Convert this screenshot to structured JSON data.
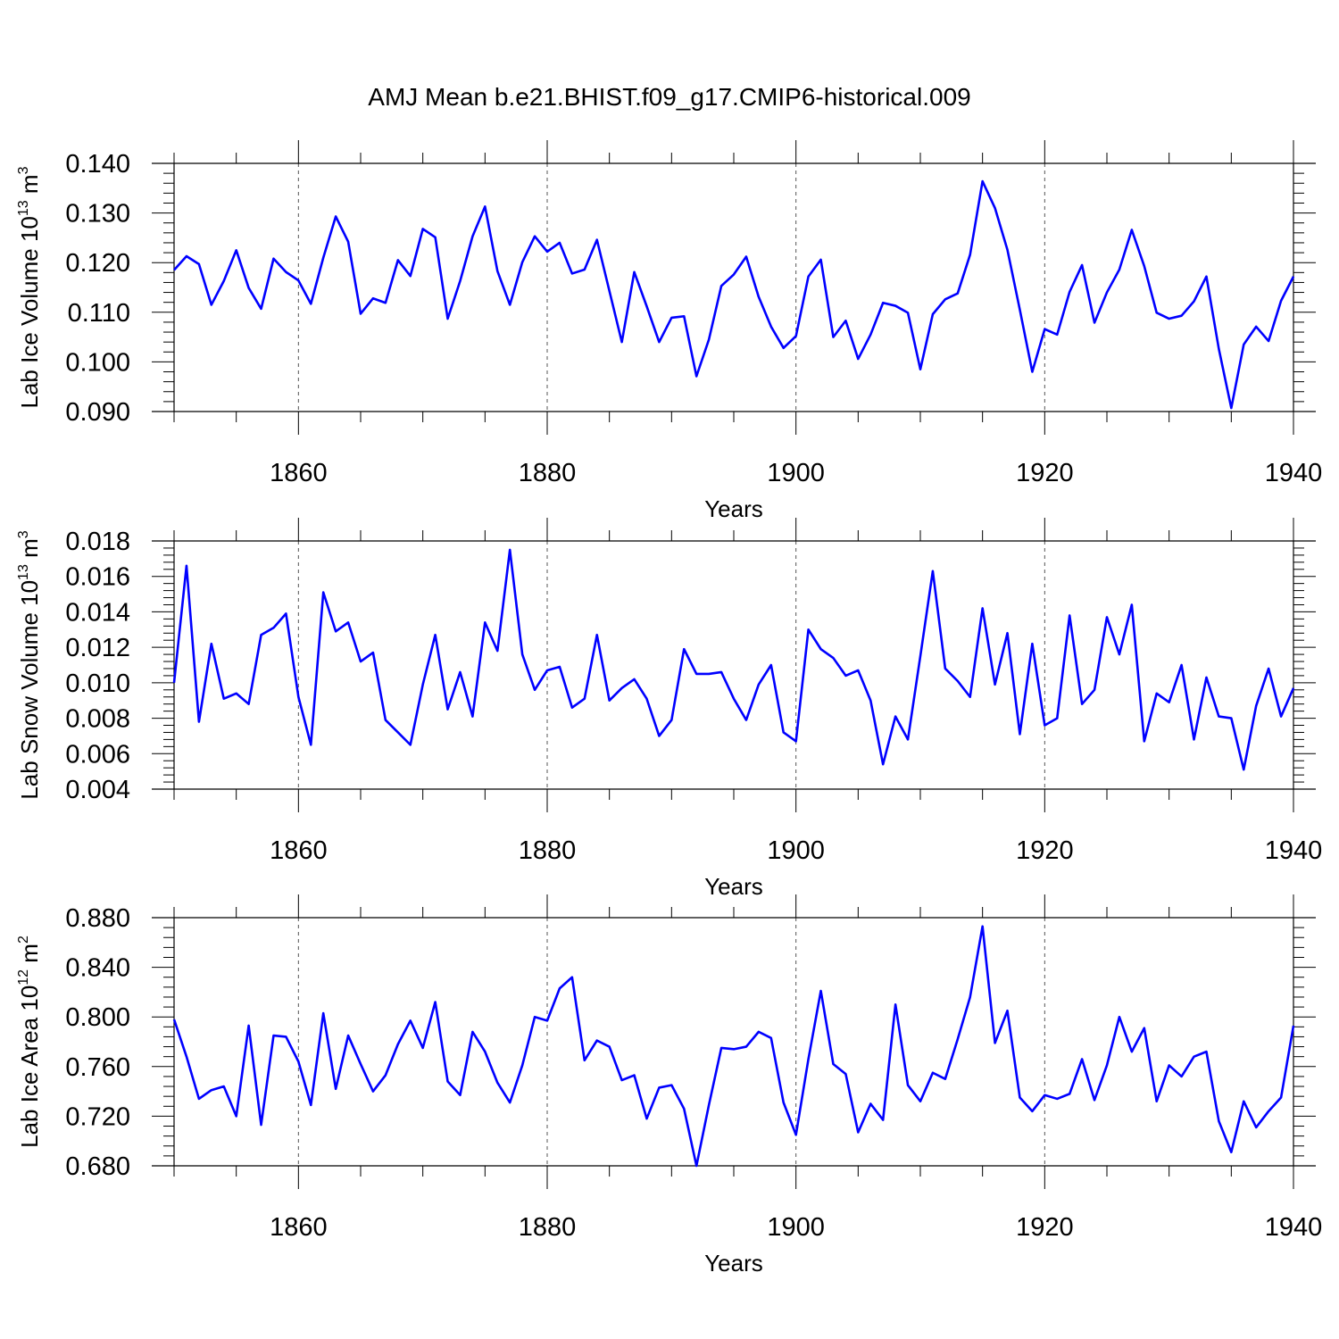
{
  "figure": {
    "title": "AMJ Mean b.e21.BHIST.f09_g17.CMIP6-historical.009",
    "line_color": "#0000ff"
  },
  "chart_data": [
    {
      "type": "line",
      "title": "",
      "xlabel": "Years",
      "ylabel": {
        "base": "Lab Ice Volume 10",
        "exp": "13",
        "unit": " m",
        "unit_exp": "3"
      },
      "xlim": [
        1850,
        1940
      ],
      "ylim": [
        0.09,
        0.14
      ],
      "x_ticks": [
        1860,
        1880,
        1900,
        1920,
        1940
      ],
      "y_ticks": [
        0.09,
        0.1,
        0.11,
        0.12,
        0.13,
        0.14
      ],
      "y_tick_labels": [
        "0.090",
        "0.100",
        "0.110",
        "0.120",
        "0.130",
        "0.140"
      ],
      "grid": "vertical dashed at major x ticks",
      "x_start": 1850,
      "values": [
        0.1185,
        0.1213,
        0.1197,
        0.1115,
        0.1163,
        0.1225,
        0.1149,
        0.1107,
        0.1208,
        0.1181,
        0.1164,
        0.1117,
        0.121,
        0.1293,
        0.1242,
        0.1097,
        0.1128,
        0.1119,
        0.1205,
        0.1173,
        0.1268,
        0.1251,
        0.1087,
        0.1163,
        0.1253,
        0.1313,
        0.1183,
        0.1115,
        0.1201,
        0.1253,
        0.1222,
        0.124,
        0.1178,
        0.1186,
        0.1246,
        0.1143,
        0.104,
        0.1181,
        0.1112,
        0.104,
        0.1089,
        0.1092,
        0.0971,
        0.1045,
        0.1153,
        0.1176,
        0.1212,
        0.1131,
        0.1071,
        0.1028,
        0.1052,
        0.1172,
        0.1206,
        0.105,
        0.1083,
        0.1006,
        0.1055,
        0.1119,
        0.1113,
        0.1099,
        0.0985,
        0.1096,
        0.1126,
        0.1138,
        0.1216,
        0.1364,
        0.131,
        0.1226,
        0.1105,
        0.098,
        0.1066,
        0.1055,
        0.1141,
        0.1195,
        0.1079,
        0.114,
        0.1186,
        0.1266,
        0.1193,
        0.1099,
        0.1087,
        0.1093,
        0.1122,
        0.1172,
        0.1026,
        0.0907,
        0.1035,
        0.1071,
        0.1042,
        0.1123,
        0.1172
      ]
    },
    {
      "type": "line",
      "title": "",
      "xlabel": "Years",
      "ylabel": {
        "base": "Lab Snow Volume 10",
        "exp": "13",
        "unit": " m",
        "unit_exp": "3"
      },
      "xlim": [
        1850,
        1940
      ],
      "ylim": [
        0.004,
        0.018
      ],
      "x_ticks": [
        1860,
        1880,
        1900,
        1920,
        1940
      ],
      "y_ticks": [
        0.004,
        0.006,
        0.008,
        0.01,
        0.012,
        0.014,
        0.016,
        0.018
      ],
      "y_tick_labels": [
        "0.004",
        "0.006",
        "0.008",
        "0.010",
        "0.012",
        "0.014",
        "0.016",
        "0.018"
      ],
      "grid": "vertical dashed at major x ticks",
      "x_start": 1850,
      "values": [
        0.01,
        0.0166,
        0.0078,
        0.0122,
        0.0091,
        0.0094,
        0.0088,
        0.0127,
        0.0131,
        0.0139,
        0.0092,
        0.0065,
        0.0151,
        0.0129,
        0.0134,
        0.0112,
        0.0117,
        0.0079,
        0.0072,
        0.0065,
        0.0099,
        0.0127,
        0.0085,
        0.0106,
        0.0081,
        0.0134,
        0.0118,
        0.0175,
        0.0116,
        0.0096,
        0.0107,
        0.0109,
        0.0086,
        0.0091,
        0.0127,
        0.009,
        0.0097,
        0.0102,
        0.0091,
        0.007,
        0.0079,
        0.0119,
        0.0105,
        0.0105,
        0.0106,
        0.0091,
        0.0079,
        0.0099,
        0.011,
        0.0072,
        0.0067,
        0.013,
        0.0119,
        0.0114,
        0.0104,
        0.0107,
        0.009,
        0.0054,
        0.0081,
        0.0068,
        0.0115,
        0.0163,
        0.0108,
        0.0101,
        0.0092,
        0.0142,
        0.0099,
        0.0128,
        0.0071,
        0.0122,
        0.0076,
        0.008,
        0.0138,
        0.0088,
        0.0096,
        0.0137,
        0.0116,
        0.0144,
        0.0067,
        0.0094,
        0.0089,
        0.011,
        0.0068,
        0.0103,
        0.0081,
        0.008,
        0.0051,
        0.0087,
        0.0108,
        0.0081,
        0.0097
      ]
    },
    {
      "type": "line",
      "title": "",
      "xlabel": "Years",
      "ylabel": {
        "base": "Lab Ice Area 10",
        "exp": "12",
        "unit": " m",
        "unit_exp": "2"
      },
      "xlim": [
        1850,
        1940
      ],
      "ylim": [
        0.68,
        0.88
      ],
      "x_ticks": [
        1860,
        1880,
        1900,
        1920,
        1940
      ],
      "y_ticks": [
        0.68,
        0.72,
        0.76,
        0.8,
        0.84,
        0.88
      ],
      "y_tick_labels": [
        "0.680",
        "0.720",
        "0.760",
        "0.800",
        "0.840",
        "0.880"
      ],
      "grid": "vertical dashed at major x ticks",
      "x_start": 1850,
      "values": [
        0.798,
        0.768,
        0.734,
        0.741,
        0.744,
        0.72,
        0.793,
        0.713,
        0.785,
        0.784,
        0.764,
        0.729,
        0.803,
        0.742,
        0.785,
        0.762,
        0.74,
        0.753,
        0.778,
        0.797,
        0.775,
        0.812,
        0.748,
        0.737,
        0.788,
        0.772,
        0.747,
        0.731,
        0.761,
        0.8,
        0.797,
        0.823,
        0.832,
        0.765,
        0.781,
        0.776,
        0.749,
        0.753,
        0.718,
        0.743,
        0.745,
        0.726,
        0.68,
        0.729,
        0.775,
        0.774,
        0.776,
        0.788,
        0.783,
        0.731,
        0.705,
        0.766,
        0.821,
        0.762,
        0.754,
        0.707,
        0.73,
        0.717,
        0.81,
        0.745,
        0.732,
        0.755,
        0.75,
        0.782,
        0.816,
        0.873,
        0.779,
        0.805,
        0.735,
        0.724,
        0.737,
        0.734,
        0.738,
        0.766,
        0.733,
        0.761,
        0.8,
        0.772,
        0.791,
        0.732,
        0.761,
        0.752,
        0.768,
        0.772,
        0.716,
        0.691,
        0.732,
        0.711,
        0.724,
        0.735,
        0.793
      ]
    }
  ]
}
